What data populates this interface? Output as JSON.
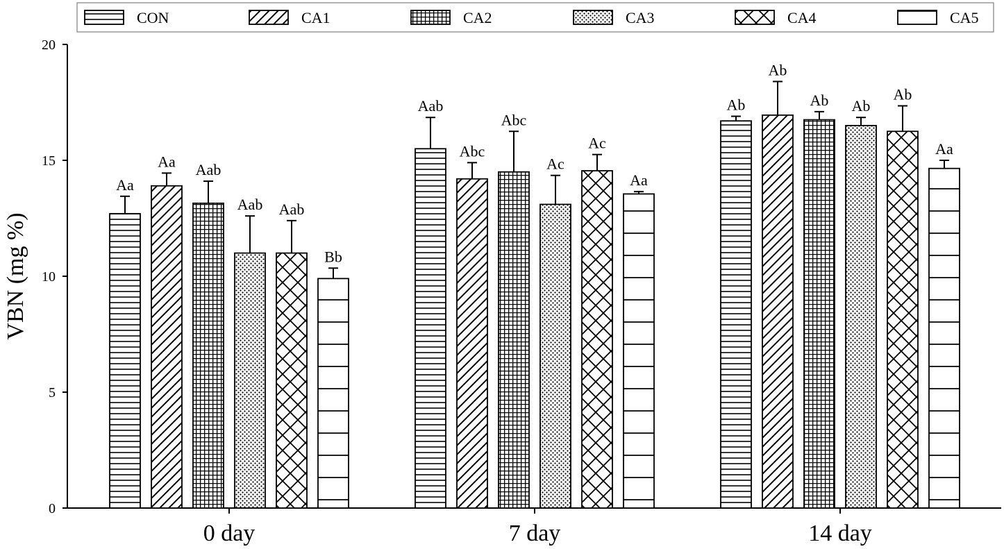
{
  "chart_data": {
    "type": "bar",
    "categories": [
      "0 day",
      "7 day",
      "14 day"
    ],
    "ylabel": "VBN (mg %)",
    "xlabel": "",
    "ylim": [
      0,
      20
    ],
    "yticks": [
      0,
      5,
      10,
      15,
      20
    ],
    "legend_position": "top",
    "grid": false,
    "series": [
      {
        "name": "CON",
        "pattern": "horizontal-dense",
        "values": [
          12.7,
          15.5,
          16.7
        ],
        "errors": [
          0.75,
          1.35,
          0.2
        ],
        "labels": [
          "Aa",
          "Aab",
          "Ab"
        ]
      },
      {
        "name": "CA1",
        "pattern": "diagonal",
        "values": [
          13.9,
          14.2,
          16.95
        ],
        "errors": [
          0.55,
          0.7,
          1.45
        ],
        "labels": [
          "Aa",
          "Abc",
          "Ab"
        ]
      },
      {
        "name": "CA2",
        "pattern": "grid-dense",
        "values": [
          13.15,
          14.5,
          16.75
        ],
        "errors": [
          0.95,
          1.75,
          0.35
        ],
        "labels": [
          "Aab",
          "Abc",
          "Ab"
        ]
      },
      {
        "name": "CA3",
        "pattern": "dots",
        "values": [
          11.0,
          13.1,
          16.5
        ],
        "errors": [
          1.6,
          1.25,
          0.35
        ],
        "labels": [
          "Aab",
          "Ac",
          "Ab"
        ]
      },
      {
        "name": "CA4",
        "pattern": "crosshatch",
        "values": [
          11.0,
          14.55,
          16.25
        ],
        "errors": [
          1.4,
          0.7,
          1.1
        ],
        "labels": [
          "Aab",
          "Ac",
          "Ab"
        ]
      },
      {
        "name": "CA5",
        "pattern": "horizontal-sparse",
        "values": [
          9.9,
          13.55,
          14.65
        ],
        "errors": [
          0.45,
          0.1,
          0.35
        ],
        "labels": [
          "Bb",
          "Aa",
          "Aa"
        ]
      }
    ]
  }
}
